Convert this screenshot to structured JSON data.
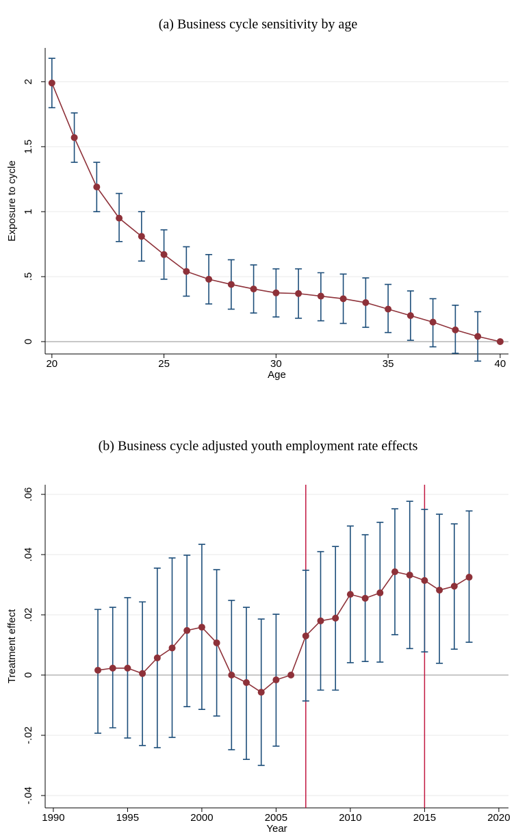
{
  "chart_data": [
    {
      "type": "line",
      "title": "(a) Business cycle sensitivity by age",
      "xlabel": "Age",
      "ylabel": "Exposure to cycle",
      "x": [
        20,
        21,
        22,
        23,
        24,
        25,
        26,
        27,
        28,
        29,
        30,
        31,
        32,
        33,
        34,
        35,
        36,
        37,
        38,
        39,
        40
      ],
      "values": [
        1.99,
        1.57,
        1.19,
        0.95,
        0.81,
        0.67,
        0.54,
        0.48,
        0.44,
        0.405,
        0.375,
        0.37,
        0.35,
        0.33,
        0.3,
        0.25,
        0.2,
        0.15,
        0.09,
        0.04,
        0
      ],
      "ci_low": [
        1.8,
        1.38,
        1.0,
        0.77,
        0.62,
        0.48,
        0.35,
        0.29,
        0.25,
        0.22,
        0.19,
        0.18,
        0.16,
        0.14,
        0.11,
        0.07,
        0.01,
        -0.04,
        -0.09,
        -0.15,
        null
      ],
      "ci_high": [
        2.18,
        1.76,
        1.38,
        1.14,
        1.0,
        0.86,
        0.73,
        0.67,
        0.63,
        0.59,
        0.56,
        0.56,
        0.53,
        0.52,
        0.49,
        0.44,
        0.39,
        0.33,
        0.28,
        0.23,
        null
      ],
      "color": "#8e3139",
      "ci_color": "#1d4e7a",
      "xlim": [
        19.7,
        40.37
      ],
      "xticks": [
        20,
        25,
        30,
        35,
        40
      ],
      "ylim": [
        -0.095,
        2.26
      ],
      "yticks": [
        0,
        {
          "value": 0.5,
          "label": ".5"
        },
        1,
        1.5,
        2
      ],
      "grid": true,
      "refline": 0
    },
    {
      "type": "line",
      "title": "(b) Business cycle adjusted youth employment rate effects",
      "xlabel": "Year",
      "ylabel": "Treatment effect",
      "x": [
        1993,
        1994,
        1995,
        1996,
        1997,
        1998,
        1999,
        2000,
        2001,
        2002,
        2003,
        2004,
        2005,
        2006,
        2007,
        2008,
        2009,
        2010,
        2011,
        2012,
        2013,
        2014,
        2015,
        2016,
        2017,
        2018
      ],
      "values": [
        0.0016,
        0.0023,
        0.0023,
        0.0005,
        0.0057,
        0.009,
        0.0148,
        0.0159,
        0.0107,
        0,
        -0.0025,
        -0.0057,
        -0.0016,
        0,
        0.013,
        0.018,
        0.0189,
        0.0268,
        0.0255,
        0.0273,
        0.0343,
        0.0332,
        0.0314,
        0.0282,
        0.0295,
        0.0325
      ],
      "ci_low": [
        -0.0193,
        -0.0175,
        -0.0209,
        -0.0234,
        -0.0241,
        -0.0207,
        -0.0105,
        -0.0114,
        -0.0136,
        -0.0248,
        -0.028,
        -0.03,
        -0.0236,
        null,
        -0.0086,
        -0.005,
        -0.005,
        0.0041,
        0.0045,
        0.0043,
        0.0134,
        0.0088,
        0.0077,
        0.0039,
        0.0086,
        0.0109
      ],
      "ci_high": [
        0.0218,
        0.0225,
        0.0257,
        0.0243,
        0.0355,
        0.0389,
        0.0398,
        0.0434,
        0.035,
        0.0248,
        0.0225,
        0.0186,
        0.0202,
        null,
        0.0348,
        0.041,
        0.0427,
        0.0495,
        0.0466,
        0.0507,
        0.0552,
        0.0577,
        0.055,
        0.0534,
        0.0502,
        0.0545
      ],
      "color": "#8e3139",
      "ci_color": "#1d4e7a",
      "xlim": [
        1989.45,
        2020.65
      ],
      "xticks": [
        1990,
        1995,
        2000,
        2005,
        2010,
        2015,
        2020
      ],
      "ylim": [
        -0.0441,
        0.0632
      ],
      "yticks": [
        {
          "value": -0.04,
          "label": "-.04"
        },
        {
          "value": -0.02,
          "label": "-.02"
        },
        0,
        {
          "value": 0.02,
          "label": ".02"
        },
        {
          "value": 0.04,
          "label": ".04"
        },
        {
          "value": 0.06,
          "label": ".06"
        }
      ],
      "grid": true,
      "refline": 0,
      "vlines": [
        2007,
        2015
      ],
      "vline_color": "#c0163f"
    }
  ]
}
